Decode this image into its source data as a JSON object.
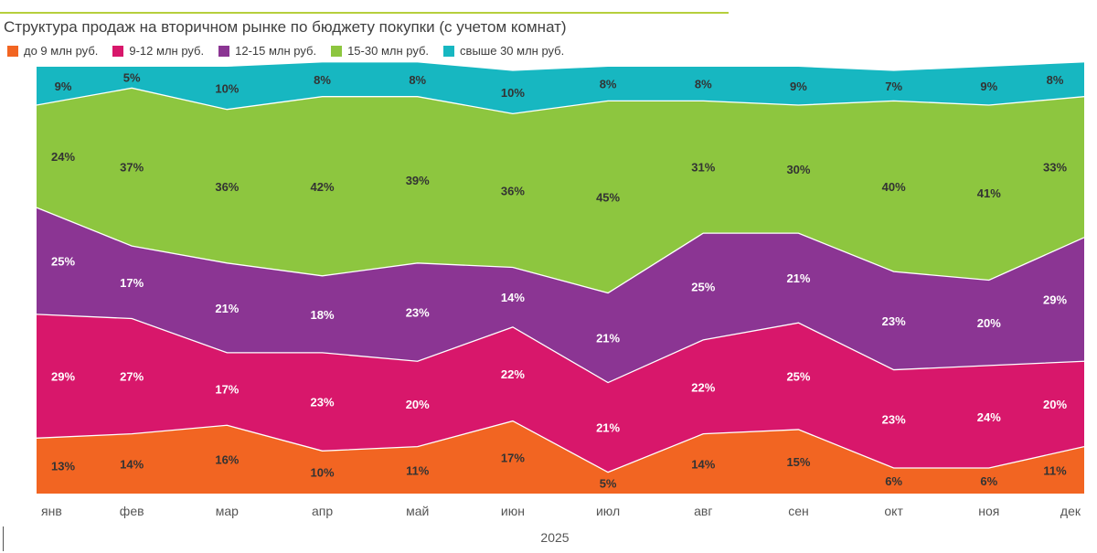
{
  "chart_data": {
    "type": "area",
    "stacked": true,
    "normalized": true,
    "title": "Структура продаж на вторичном рынке по бюджету покупки (с учетом комнат)",
    "xlabel": "2025",
    "ylabel": "",
    "ylim": [
      0,
      100
    ],
    "categories": [
      "янв",
      "фев",
      "мар",
      "апр",
      "май",
      "июн",
      "июл",
      "авг",
      "сен",
      "окт",
      "ноя",
      "дек"
    ],
    "series": [
      {
        "name": "до 9 млн руб.",
        "color": "#f26522",
        "values": [
          13,
          14,
          16,
          10,
          11,
          17,
          5,
          14,
          15,
          6,
          6,
          11
        ]
      },
      {
        "name": "9-12 млн руб.",
        "color": "#d8176b",
        "values": [
          29,
          27,
          17,
          23,
          20,
          22,
          21,
          22,
          25,
          23,
          24,
          20
        ]
      },
      {
        "name": "12-15 млн руб.",
        "color": "#8b3593",
        "values": [
          25,
          17,
          21,
          18,
          23,
          14,
          21,
          25,
          21,
          23,
          20,
          29
        ]
      },
      {
        "name": "15-30 млн руб.",
        "color": "#8dc63f",
        "values": [
          24,
          37,
          36,
          42,
          39,
          36,
          45,
          31,
          30,
          40,
          41,
          33
        ]
      },
      {
        "name": "свыше 30 млн руб.",
        "color": "#17b7c1",
        "values": [
          9,
          5,
          10,
          8,
          8,
          10,
          8,
          8,
          9,
          7,
          9,
          8
        ]
      }
    ],
    "labels": [
      [
        "13%",
        "14%",
        "16%",
        "10%",
        "11%",
        "17%",
        "5%",
        "14%",
        "15%",
        "6%",
        "6%",
        "11%"
      ],
      [
        "29%",
        "27%",
        "17%",
        "23%",
        "20%",
        "22%",
        "21%",
        "22%",
        "25%",
        "23%",
        "24%",
        "20%"
      ],
      [
        "25%",
        "17%",
        "21%",
        "18%",
        "23%",
        "14%",
        "21%",
        "25%",
        "21%",
        "23%",
        "20%",
        "29%"
      ],
      [
        "24%",
        "37%",
        "36%",
        "42%",
        "39%",
        "36%",
        "45%",
        "31%",
        "30%",
        "40%",
        "41%",
        "33%"
      ],
      [
        "9%",
        "5%",
        "10%",
        "8%",
        "8%",
        "10%",
        "8%",
        "8%",
        "9%",
        "7%",
        "9%",
        "8%"
      ]
    ],
    "label_colors": [
      "#333333",
      "#ffffff",
      "#ffffff",
      "#333333",
      "#333333"
    ],
    "legend_position": "top-left",
    "grid": false
  }
}
